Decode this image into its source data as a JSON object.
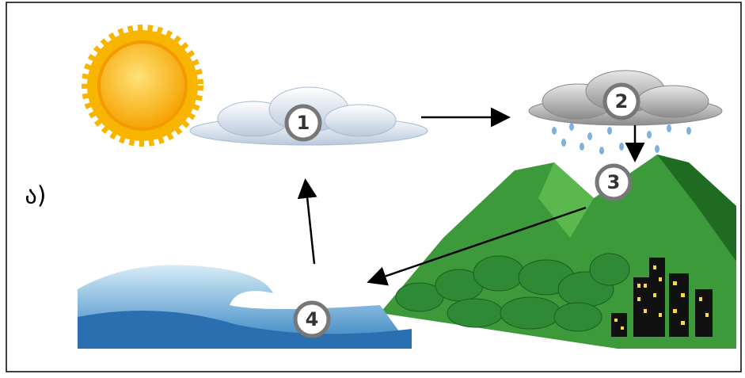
{
  "label": "ა)",
  "nodes": [
    {
      "label": "1"
    },
    {
      "label": "2"
    },
    {
      "label": "3"
    },
    {
      "label": "4"
    }
  ]
}
